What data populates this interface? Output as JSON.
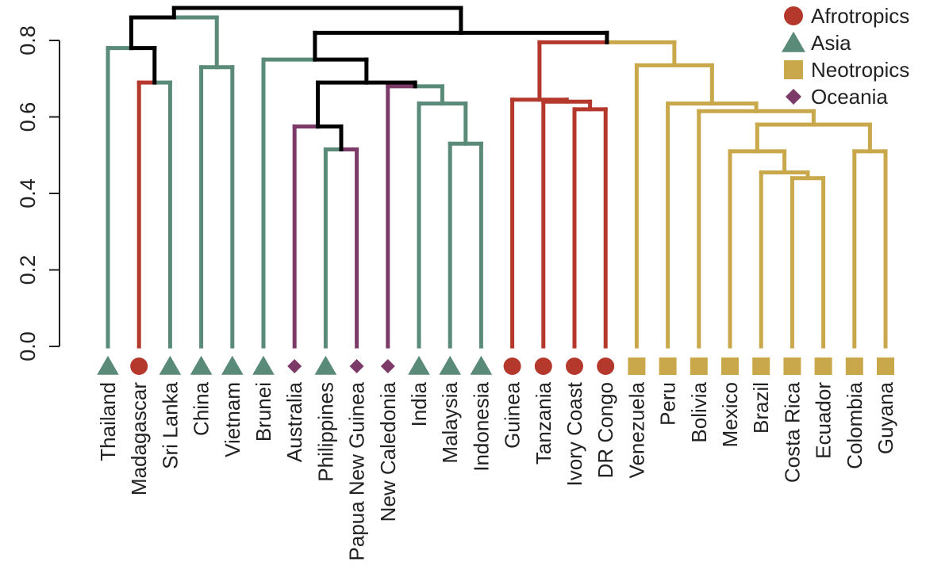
{
  "chart_data": {
    "type": "dendrogram",
    "title": "",
    "xlabel": "",
    "ylabel": "",
    "ylim": [
      0,
      0.8
    ],
    "yticks": [
      "0.0",
      "0.2",
      "0.4",
      "0.6",
      "0.8"
    ],
    "ytick_values": [
      0,
      0.2,
      0.4,
      0.6,
      0.8
    ],
    "grid": false,
    "legend_placement": "top-right",
    "groups": [
      {
        "name": "Afrotropics",
        "color": "#b5382d",
        "marker": "circle"
      },
      {
        "name": "Asia",
        "color": "#5a8a78",
        "marker": "triangle"
      },
      {
        "name": "Neotropics",
        "color": "#c9a84c",
        "marker": "square"
      },
      {
        "name": "Oceania",
        "color": "#7c3a69",
        "marker": "diamond"
      }
    ],
    "leaves": [
      {
        "label": "Thailand",
        "group": "Asia"
      },
      {
        "label": "Madagascar",
        "group": "Afrotropics"
      },
      {
        "label": "Sri Lanka",
        "group": "Asia"
      },
      {
        "label": "China",
        "group": "Asia"
      },
      {
        "label": "Vietnam",
        "group": "Asia"
      },
      {
        "label": "Brunei",
        "group": "Asia"
      },
      {
        "label": "Australia",
        "group": "Oceania"
      },
      {
        "label": "Philippines",
        "group": "Asia"
      },
      {
        "label": "Papua New Guinea",
        "group": "Oceania"
      },
      {
        "label": "New Caledonia",
        "group": "Oceania"
      },
      {
        "label": "India",
        "group": "Asia"
      },
      {
        "label": "Malaysia",
        "group": "Asia"
      },
      {
        "label": "Indonesia",
        "group": "Asia"
      },
      {
        "label": "Guinea",
        "group": "Afrotropics"
      },
      {
        "label": "Tanzania",
        "group": "Afrotropics"
      },
      {
        "label": "Ivory Coast",
        "group": "Afrotropics"
      },
      {
        "label": "DR Congo",
        "group": "Afrotropics"
      },
      {
        "label": "Venezuela",
        "group": "Neotropics"
      },
      {
        "label": "Peru",
        "group": "Neotropics"
      },
      {
        "label": "Bolivia",
        "group": "Neotropics"
      },
      {
        "label": "Mexico",
        "group": "Neotropics"
      },
      {
        "label": "Brazil",
        "group": "Neotropics"
      },
      {
        "label": "Costa Rica",
        "group": "Neotropics"
      },
      {
        "label": "Ecuador",
        "group": "Neotropics"
      },
      {
        "label": "Colombia",
        "group": "Neotropics"
      },
      {
        "label": "Guyana",
        "group": "Neotropics"
      }
    ],
    "merges": [
      {
        "id": "A",
        "children": [
          "Madagascar",
          "Sri Lanka"
        ],
        "height": 0.69
      },
      {
        "id": "B",
        "children": [
          "Thailand",
          "A"
        ],
        "height": 0.78
      },
      {
        "id": "C",
        "children": [
          "China",
          "Vietnam"
        ],
        "height": 0.73
      },
      {
        "id": "D",
        "children": [
          "B",
          "C"
        ],
        "height": 0.86
      },
      {
        "id": "E",
        "children": [
          "Philippines",
          "Papua New Guinea"
        ],
        "height": 0.515
      },
      {
        "id": "F",
        "children": [
          "Australia",
          "E"
        ],
        "height": 0.575
      },
      {
        "id": "G",
        "children": [
          "Malaysia",
          "Indonesia"
        ],
        "height": 0.53
      },
      {
        "id": "H",
        "children": [
          "India",
          "G"
        ],
        "height": 0.635
      },
      {
        "id": "I",
        "children": [
          "New Caledonia",
          "H"
        ],
        "height": 0.68
      },
      {
        "id": "J",
        "children": [
          "F",
          "I"
        ],
        "height": 0.69
      },
      {
        "id": "K",
        "children": [
          "Brunei",
          "J"
        ],
        "height": 0.75
      },
      {
        "id": "L",
        "children": [
          "Ivory Coast",
          "DR Congo"
        ],
        "height": 0.62
      },
      {
        "id": "M",
        "children": [
          "Tanzania",
          "L"
        ],
        "height": 0.64
      },
      {
        "id": "N",
        "children": [
          "Guinea",
          "M"
        ],
        "height": 0.645
      },
      {
        "id": "O",
        "children": [
          "Ecuador",
          "Costa Rica"
        ],
        "height": 0.44
      },
      {
        "id": "P",
        "children": [
          "Brazil",
          "O"
        ],
        "height": 0.455
      },
      {
        "id": "Q",
        "children": [
          "Mexico",
          "P"
        ],
        "height": 0.51
      },
      {
        "id": "R",
        "children": [
          "Colombia",
          "Guyana"
        ],
        "height": 0.51
      },
      {
        "id": "S",
        "children": [
          "Q",
          "R"
        ],
        "height": 0.58
      },
      {
        "id": "T",
        "children": [
          "Bolivia",
          "S"
        ],
        "height": 0.615
      },
      {
        "id": "U",
        "children": [
          "Peru",
          "T"
        ],
        "height": 0.635
      },
      {
        "id": "V",
        "children": [
          "Venezuela",
          "U"
        ],
        "height": 0.735
      },
      {
        "id": "W",
        "children": [
          "N",
          "V"
        ],
        "height": 0.795
      },
      {
        "id": "X",
        "children": [
          "K",
          "W"
        ],
        "height": 0.82
      },
      {
        "id": "Y",
        "children": [
          "D",
          "X"
        ],
        "height": 0.885
      }
    ]
  }
}
